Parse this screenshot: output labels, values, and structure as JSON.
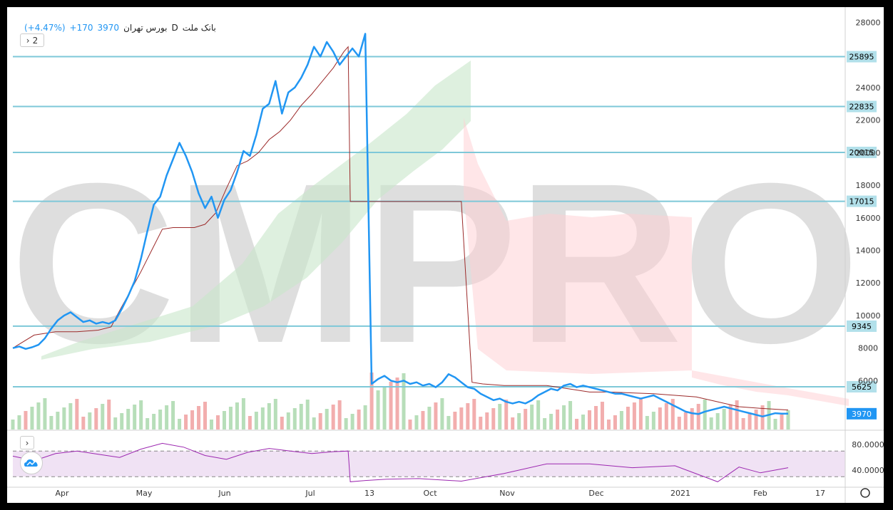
{
  "header": {
    "title": "بانک ملت",
    "interval": "D",
    "exchange": "بورس تهران",
    "last": "3970",
    "change": "+170",
    "change_pct": "(+4.47%)",
    "collapse_button": "2",
    "indicator_button": "›"
  },
  "colors": {
    "price": "#2196f3",
    "baseline": "#9c2a2a",
    "hlines": "#7ec8d8",
    "rsi": "#9c27b0",
    "rsi_band": "#ead6ef",
    "cloud_up": "#c8e6c9",
    "cloud_down": "#ffcdd2",
    "vol_up": "#a5d6a7",
    "vol_down": "#ef9a9a",
    "watermark": "#d9d9d9"
  },
  "watermark": "CMPRO",
  "chart_data": [
    {
      "type": "line",
      "y_axis": {
        "ticks": [
          6000,
          8000,
          10000,
          12000,
          14000,
          16000,
          18000,
          20000,
          22000,
          24000,
          28000
        ],
        "range": [
          3000,
          28500
        ]
      },
      "x_axis": {
        "labels": [
          "Apr",
          "May",
          "Jun",
          "Jul",
          "13",
          "Oct",
          "Nov",
          "Dec",
          "2021",
          "Feb",
          "17"
        ]
      },
      "horizontal_levels": [
        25895,
        22835,
        20015,
        17015,
        9345,
        5625
      ],
      "last_price_label": "3970",
      "series": [
        {
          "x": [
            0,
            3,
            6,
            9,
            12,
            15,
            18,
            21,
            24,
            27,
            30,
            33,
            36,
            39,
            42,
            45,
            48,
            51,
            54,
            57,
            60,
            63,
            66,
            69,
            72,
            75,
            78,
            81,
            84,
            87,
            90,
            93,
            96,
            99,
            102,
            105,
            108,
            111,
            114,
            117,
            120,
            123,
            126,
            129,
            132,
            135,
            138,
            141,
            144,
            147,
            150,
            153,
            156,
            159,
            162,
            165,
            168,
            171,
            174,
            177,
            180,
            183,
            186,
            189,
            192,
            195,
            198,
            201,
            204,
            207,
            210,
            213,
            216,
            219,
            222,
            225,
            228,
            231,
            234,
            237,
            240,
            243,
            246,
            249,
            252,
            255,
            258,
            261,
            264,
            267,
            270,
            273,
            276,
            279,
            282,
            285,
            288,
            291,
            294,
            297,
            300,
            303,
            306,
            309,
            312,
            315,
            318,
            321,
            324,
            327,
            330,
            333,
            336,
            339,
            342,
            345,
            348,
            351,
            354,
            357,
            360,
            363
          ],
          "values": [
            8000,
            8100,
            7950,
            8050,
            8200,
            8600,
            9200,
            9700,
            10000,
            10200,
            9900,
            9600,
            9700,
            9500,
            9600,
            9500,
            9700,
            10400,
            11200,
            12100,
            13500,
            15200,
            16800,
            17300,
            18600,
            19600,
            20600,
            19800,
            18800,
            17500,
            16600,
            17300,
            16000,
            17100,
            17700,
            18800,
            20100,
            19800,
            21100,
            22700,
            23000,
            24400,
            22400,
            23700,
            24000,
            24600,
            25400,
            26500,
            25900,
            26800,
            26200,
            25400,
            25900,
            26400,
            25900,
            27300,
            5800,
            6100,
            6300,
            6000,
            5900,
            6000,
            5800,
            5900,
            5700,
            5800,
            5600,
            5900,
            6400,
            6200,
            5900,
            5600,
            5500,
            5200,
            5000,
            4800,
            4900,
            4700,
            4600,
            4700,
            4600,
            4800,
            5100,
            5300,
            5500,
            5400,
            5700,
            5800,
            5600,
            5700,
            5600,
            5500,
            5400,
            5300,
            5200,
            5200,
            5100,
            5000,
            4900,
            5000,
            5100,
            4900,
            4700,
            4500,
            4300,
            4100,
            4000,
            3950,
            4100,
            4200,
            4300,
            4400,
            4300,
            4200,
            4100,
            4000,
            3900,
            3800,
            3900,
            4000,
            3970,
            3970
          ]
        },
        {
          "x": [
            0,
            10,
            20,
            30,
            40,
            46,
            50,
            55,
            60,
            65,
            70,
            75,
            80,
            85,
            90,
            95,
            100,
            105,
            110,
            115,
            120,
            125,
            130,
            135,
            140,
            145,
            150,
            155,
            157,
            158,
            170,
            180,
            190,
            200,
            210,
            215,
            220,
            230,
            240,
            250,
            260,
            270,
            280,
            290,
            300,
            310,
            320,
            330,
            340,
            350,
            363
          ],
          "values": [
            8000,
            8800,
            9000,
            9000,
            9100,
            9300,
            10300,
            11500,
            12700,
            14000,
            15300,
            15400,
            15400,
            15400,
            15600,
            16300,
            17800,
            19200,
            19500,
            20000,
            20800,
            21300,
            22000,
            22900,
            23600,
            24400,
            25200,
            26200,
            26500,
            17000,
            17000,
            17000,
            17000,
            17000,
            17000,
            5900,
            5800,
            5700,
            5700,
            5700,
            5500,
            5300,
            5300,
            5250,
            5200,
            5100,
            5000,
            4700,
            4400,
            4300,
            4200
          ]
        }
      ]
    },
    {
      "type": "line",
      "y_axis": {
        "ticks": [
          40,
          80
        ],
        "tick_labels": [
          "40.0000",
          "80.0000"
        ],
        "range": [
          18,
          98
        ]
      },
      "bands": [
        70,
        30
      ],
      "series": [
        {
          "x": [
            0,
            10,
            20,
            30,
            40,
            50,
            60,
            70,
            80,
            90,
            100,
            110,
            120,
            130,
            140,
            150,
            157,
            158,
            165,
            175,
            190,
            210,
            230,
            250,
            270,
            290,
            310,
            330,
            340,
            350,
            363
          ],
          "values": [
            62,
            55,
            66,
            70,
            65,
            60,
            73,
            82,
            76,
            63,
            57,
            68,
            74,
            70,
            66,
            69,
            70,
            22,
            24,
            26,
            27,
            23,
            35,
            50,
            50,
            44,
            47,
            22,
            45,
            36,
            44
          ]
        }
      ]
    }
  ]
}
